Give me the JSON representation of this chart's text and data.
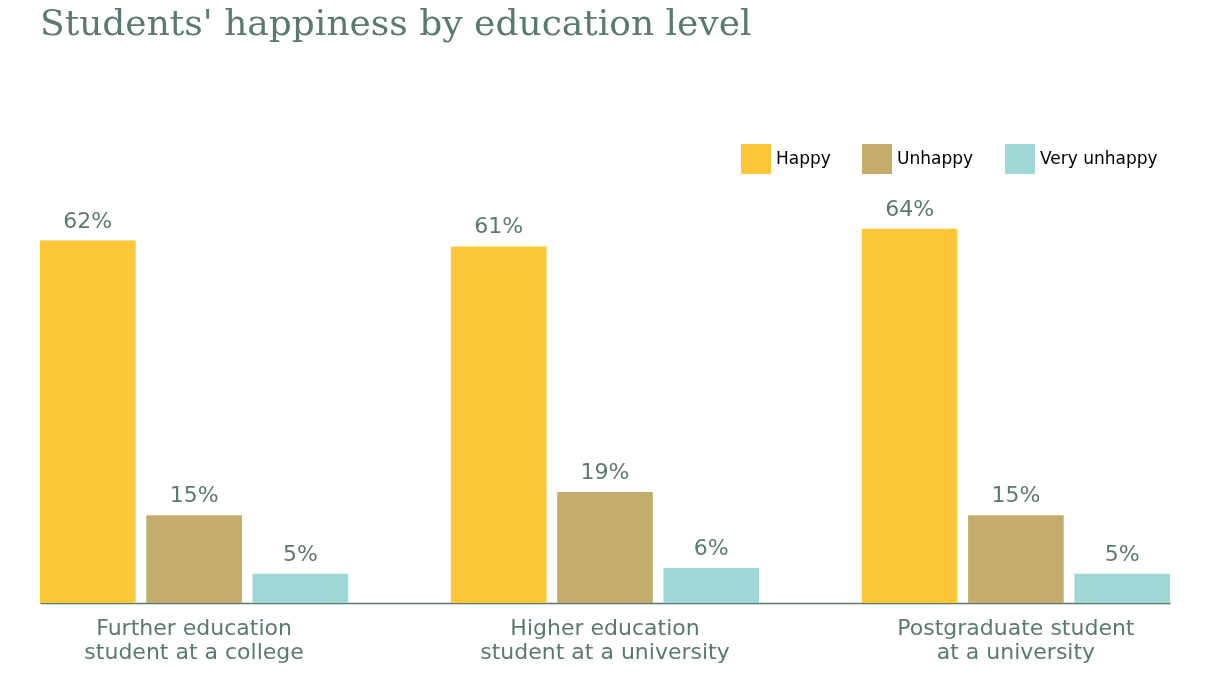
{
  "chart_data": {
    "type": "bar",
    "title": "Students' happiness by education level",
    "categories": [
      "Further education student at a college",
      "Higher education student at a university",
      "Postgraduate student at a university"
    ],
    "series": [
      {
        "name": "Happy",
        "color": "#fcc83a",
        "values": [
          62,
          61,
          64
        ],
        "value_labels": [
          "62%",
          "61%",
          "64%"
        ]
      },
      {
        "name": "Unhappy",
        "color": "#c4ad6c",
        "values": [
          15,
          19,
          15
        ],
        "value_labels": [
          "15%",
          "19%",
          "15%"
        ]
      },
      {
        "name": "Very unhappy",
        "color": "#9fd6d6",
        "values": [
          5,
          6,
          5
        ],
        "value_labels": [
          "5%",
          "6%",
          "5%"
        ]
      }
    ],
    "tick_labels": "x",
    "grid": false,
    "legend": "top right"
  }
}
